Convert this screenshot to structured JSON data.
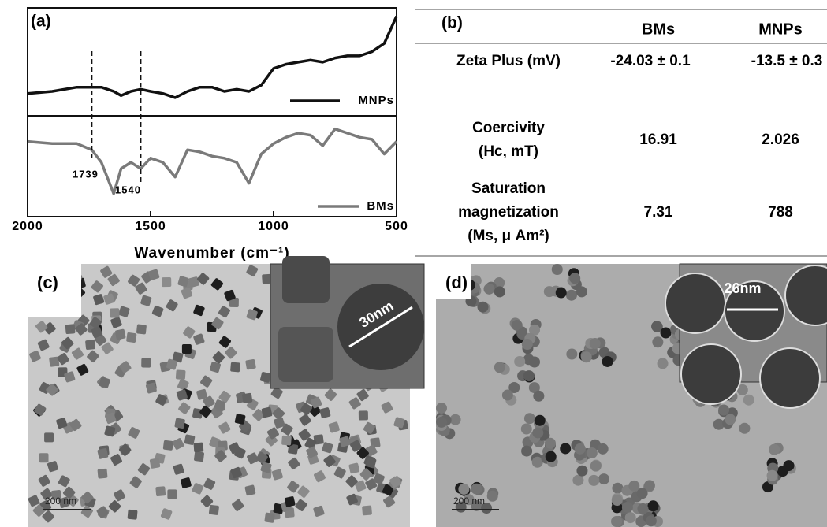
{
  "chart_data": {
    "type": "line",
    "panel_label": "(a)",
    "x": [
      2000,
      1900,
      1800,
      1739,
      1700,
      1650,
      1620,
      1580,
      1540,
      1500,
      1450,
      1400,
      1350,
      1300,
      1250,
      1200,
      1150,
      1100,
      1050,
      1000,
      950,
      900,
      850,
      800,
      750,
      700,
      650,
      600,
      550,
      500
    ],
    "series": [
      {
        "name": "MNPs",
        "color": "#111111",
        "values": [
          59,
          60,
          62,
          62,
          62,
          60,
          58,
          60,
          61,
          60,
          59,
          57,
          60,
          62,
          62,
          60,
          61,
          60,
          63,
          71,
          73,
          74,
          75,
          74,
          76,
          77,
          77,
          79,
          83,
          96
        ]
      },
      {
        "name": "BMs",
        "color": "#7a7a7a",
        "values": [
          36,
          35,
          35,
          32,
          26,
          11,
          23,
          26,
          23,
          28,
          26,
          19,
          32,
          31,
          29,
          28,
          26,
          16,
          30,
          35,
          38,
          40,
          39,
          34,
          42,
          40,
          38,
          37,
          30,
          36
        ]
      }
    ],
    "xlim": [
      2000,
      500
    ],
    "xticks": [
      2000,
      1500,
      1000,
      500
    ],
    "ylim": [
      0,
      100
    ],
    "xlabel": "Wavenumber (cm⁻¹)",
    "annotations": [
      1739,
      1540
    ]
  },
  "table": {
    "panel_label": "(b)",
    "header": [
      "BMs",
      "MNPs"
    ],
    "rows": [
      {
        "label": [
          "Zeta Plus (mV)"
        ],
        "cells": [
          "-24.03 ± 0.1",
          "-13.5 ± 0.3"
        ]
      },
      {
        "label": [
          "Coercivity",
          "(Hc, mT)"
        ],
        "cells": [
          "16.91",
          "2.026"
        ]
      },
      {
        "label": [
          "Saturation",
          "magnetization",
          "(Ms, μ Am²)"
        ],
        "cells": [
          "7.31",
          "788"
        ]
      }
    ]
  },
  "images": [
    {
      "panel_label": "(c)",
      "scale_bar": "200 nm",
      "inset_label": "30nm"
    },
    {
      "panel_label": "(d)",
      "scale_bar": "200 nm",
      "inset_label": "26nm"
    }
  ]
}
